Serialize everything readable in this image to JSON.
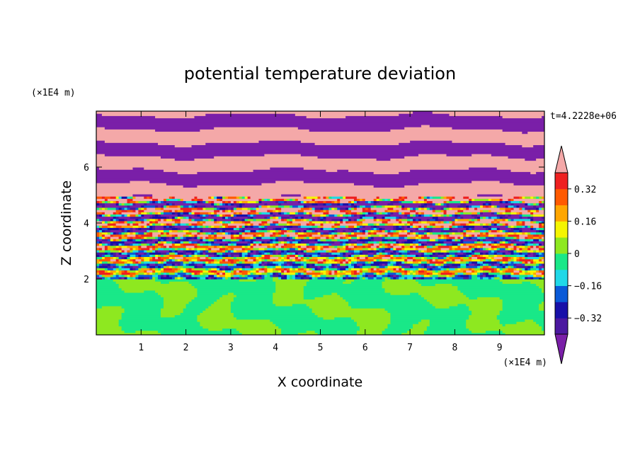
{
  "chart_data": {
    "type": "heatmap",
    "title": "potential temperature deviation",
    "xlabel": "X coordinate",
    "ylabel": "Z coordinate",
    "x_unit": "(×1E4 m)",
    "y_unit": "(×1E4 m)",
    "time_label": "t=4.2228e+06",
    "xlim": [
      0,
      10
    ],
    "ylim": [
      0,
      8
    ],
    "x_ticks": [
      "1",
      "2",
      "3",
      "4",
      "5",
      "6",
      "7",
      "8",
      "9"
    ],
    "y_ticks": [
      "2",
      "4",
      "6"
    ],
    "colorbar": {
      "tick_labels": [
        "0.32",
        "0.16",
        "0",
        "−0.16",
        "−0.32"
      ],
      "levels": [
        {
          "max": -0.4,
          "color": "#7a1fa8"
        },
        {
          "max": -0.32,
          "color": "#4b18a0"
        },
        {
          "max": -0.24,
          "color": "#1810a8"
        },
        {
          "max": -0.16,
          "color": "#0a5ad8"
        },
        {
          "max": -0.08,
          "color": "#20d8e8"
        },
        {
          "max": 0.0,
          "color": "#19e888"
        },
        {
          "max": 0.08,
          "color": "#8ee820"
        },
        {
          "max": 0.16,
          "color": "#f5f500"
        },
        {
          "max": 0.24,
          "color": "#ffa600"
        },
        {
          "max": 0.32,
          "color": "#ff5a00"
        },
        {
          "max": 0.4,
          "color": "#ee2020"
        },
        {
          "max": 1.0,
          "color": "#f4a8a8"
        }
      ]
    },
    "regions": {
      "upper_bands_z": [
        5.0,
        8.0
      ],
      "turbulent_layer_z": [
        2.0,
        5.0
      ],
      "lower_layer_z": [
        0.0,
        2.0
      ],
      "lower_layer_values": [
        0.0,
        0.08
      ]
    }
  }
}
